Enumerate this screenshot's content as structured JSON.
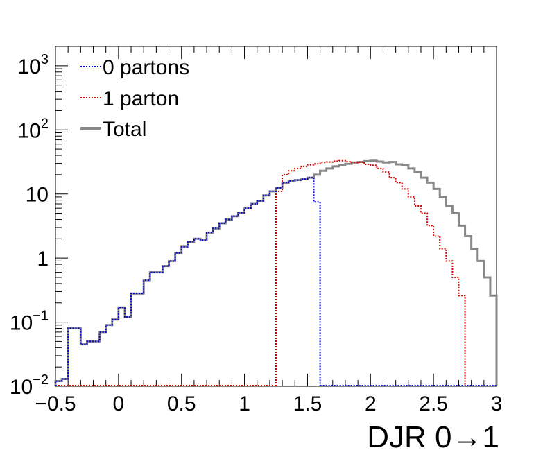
{
  "chart_data": {
    "type": "line",
    "style": "step-histogram",
    "xlabel": "DJR 0→1",
    "ylabel": "",
    "xlim": [
      -0.5,
      3.0
    ],
    "ylim": [
      0.01,
      2000
    ],
    "yscale": "log",
    "bin_width": 0.05,
    "x_ticks": [
      {
        "value": -0.5,
        "label": "−0.5"
      },
      {
        "value": 0,
        "label": "0"
      },
      {
        "value": 0.5,
        "label": "0.5"
      },
      {
        "value": 1,
        "label": "1"
      },
      {
        "value": 1.5,
        "label": "1.5"
      },
      {
        "value": 2,
        "label": "2"
      },
      {
        "value": 2.5,
        "label": "2.5"
      },
      {
        "value": 3,
        "label": "3"
      }
    ],
    "y_ticks": [
      {
        "value": 0.01,
        "base": "10",
        "exp": "−2"
      },
      {
        "value": 0.1,
        "base": "10",
        "exp": "−1"
      },
      {
        "value": 1,
        "base": "1",
        "exp": ""
      },
      {
        "value": 10,
        "base": "10",
        "exp": ""
      },
      {
        "value": 100,
        "base": "10",
        "exp": "2"
      },
      {
        "value": 1000,
        "base": "10",
        "exp": "3"
      }
    ],
    "legend_position": "top-left",
    "series": [
      {
        "name": "0 partons",
        "color": "#0000cc",
        "line": "dotted",
        "x_start": -0.5,
        "values": [
          0.012,
          0.013,
          0.08,
          0.08,
          0.045,
          0.05,
          0.05,
          0.07,
          0.09,
          0.11,
          0.17,
          0.12,
          0.28,
          0.28,
          0.45,
          0.6,
          0.6,
          0.75,
          0.9,
          1.2,
          1.5,
          1.8,
          2.0,
          1.9,
          2.5,
          2.9,
          3.5,
          4.0,
          4.5,
          5.1,
          6.0,
          7.0,
          7.8,
          9.5,
          11.0,
          12.5,
          15.0,
          16.0,
          16.5,
          17.0,
          18.0,
          7.5
        ]
      },
      {
        "name": "1 parton",
        "color": "#d40000",
        "line": "dotted",
        "x_start": 1.25,
        "values": [
          11.0,
          20.0,
          23.0,
          25.0,
          27.0,
          28.5,
          29.5,
          31.0,
          31.5,
          32.5,
          33.0,
          32.0,
          31.0,
          31.5,
          29.0,
          28.0,
          25.0,
          22.0,
          18.0,
          15.0,
          12.0,
          9.0,
          6.5,
          5.0,
          3.2,
          2.2,
          1.4,
          0.9,
          0.5,
          0.26
        ]
      },
      {
        "name": "Total",
        "color": "#888888",
        "line": "solid",
        "x_start": -0.5,
        "values": [
          0.012,
          0.013,
          0.08,
          0.08,
          0.045,
          0.05,
          0.05,
          0.07,
          0.09,
          0.11,
          0.17,
          0.12,
          0.28,
          0.28,
          0.45,
          0.6,
          0.6,
          0.75,
          0.9,
          1.2,
          1.5,
          1.8,
          2.0,
          1.9,
          2.5,
          2.9,
          3.5,
          4.0,
          4.5,
          5.1,
          6.0,
          7.0,
          7.8,
          9.5,
          11.0,
          12.5,
          15.0,
          16.0,
          16.5,
          17.0,
          18.0,
          20.0,
          23.0,
          25.0,
          27.0,
          28.5,
          29.5,
          31.0,
          31.5,
          32.5,
          33.0,
          32.0,
          31.0,
          31.5,
          29.0,
          28.0,
          25.0,
          22.0,
          18.0,
          15.0,
          12.0,
          9.0,
          6.5,
          5.0,
          3.2,
          2.2,
          1.4,
          0.9,
          0.5,
          0.26
        ]
      }
    ]
  }
}
